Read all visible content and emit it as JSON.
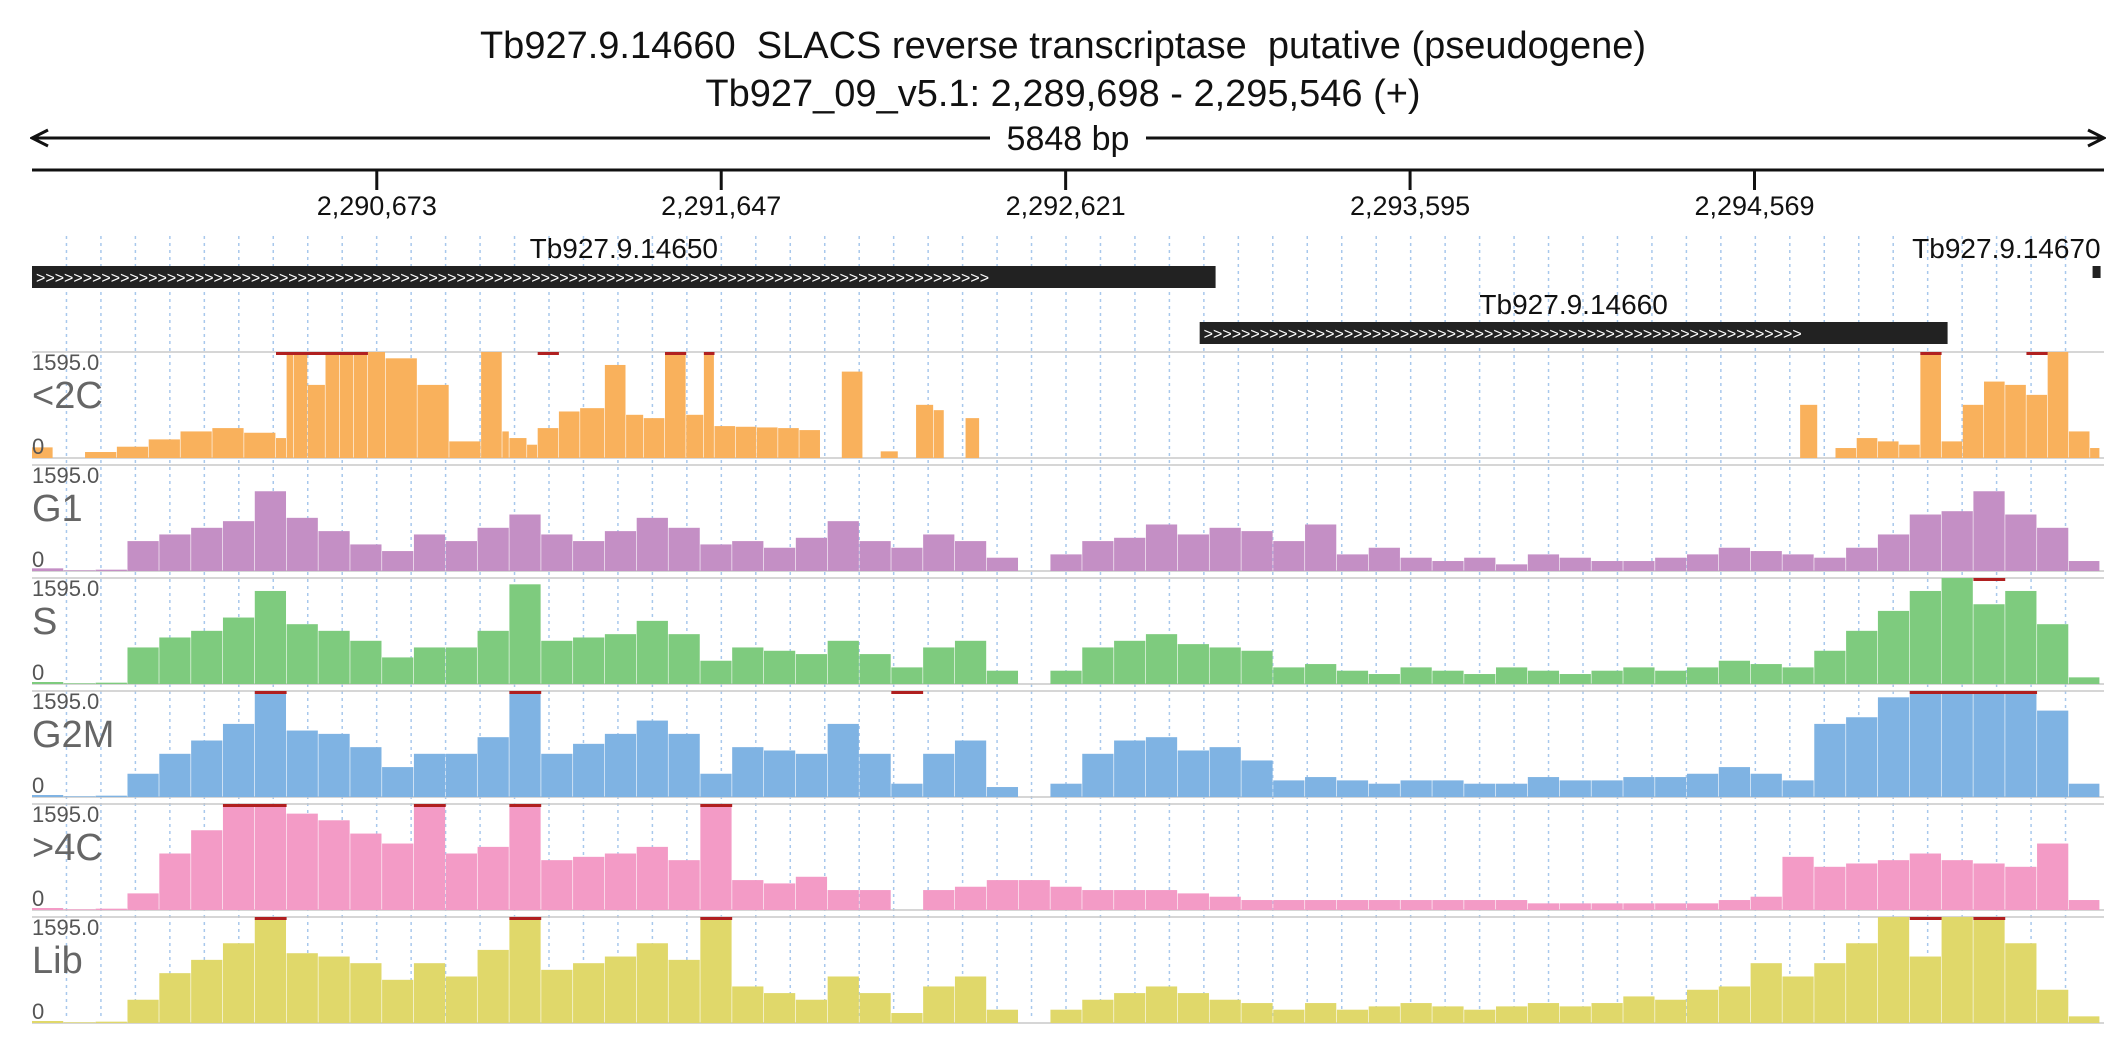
{
  "header": {
    "title": "Tb927.9.14660  SLACS reverse transcriptase  putative (pseudogene)",
    "region": "Tb927_09_v5.1: 2,289,698 - 2,295,546 (+)",
    "span_label": "5848 bp"
  },
  "chart_data": {
    "type": "area",
    "x_range": [
      2289698,
      2295546
    ],
    "x_ticks": [
      2290673,
      2291647,
      2292621,
      2293595,
      2294569
    ],
    "x_tick_labels": [
      "2,290,673",
      "2,291,647",
      "2,292,621",
      "2,293,595",
      "2,294,569"
    ],
    "y_range": [
      0,
      1595.0
    ],
    "y_max_label": "1595.0",
    "y_min_label": "0",
    "grid": "vertical dashed",
    "genes": [
      {
        "name": "Tb927.9.14650",
        "start": 2289698,
        "end": 2293045,
        "strand": "+",
        "label": "Tb927.9.14650"
      },
      {
        "name": "Tb927.9.14660",
        "start": 2293000,
        "end": 2295115,
        "strand": "+",
        "label": "Tb927.9.14660"
      },
      {
        "name": "Tb927.9.14670",
        "start": 2295525,
        "end": 2295546,
        "strand": "+",
        "label": "Tb927.9.14670"
      }
    ],
    "series": [
      {
        "name": "<2C",
        "color": "#f9b15c",
        "x": [
          2289698,
          2289758,
          2289848,
          2289938,
          2290028,
          2290118,
          2290208,
          2290298,
          2290388,
          2290418,
          2290438,
          2290478,
          2290528,
          2290568,
          2290608,
          2290648,
          2290698,
          2290788,
          2290878,
          2290968,
          2291028,
          2291048,
          2291098,
          2291128,
          2291188,
          2291248,
          2291318,
          2291378,
          2291428,
          2291488,
          2291548,
          2291598,
          2291628,
          2291688,
          2291748,
          2291808,
          2291868,
          2291928,
          2291988,
          2292048,
          2292098,
          2292148,
          2292198,
          2292248,
          2292278,
          2292338,
          2292378,
          2292438,
          2292498,
          2292558,
          2292618,
          2292678,
          2292738,
          2292798,
          2292858,
          2292918,
          2292978,
          2293038,
          2293098,
          2293158,
          2293218,
          2293278,
          2293338,
          2293398,
          2293458,
          2293518,
          2293578,
          2293638,
          2293698,
          2293758,
          2293818,
          2293878,
          2293938,
          2293998,
          2294058,
          2294118,
          2294178,
          2294238,
          2294298,
          2294358,
          2294418,
          2294478,
          2294538,
          2294598,
          2294658,
          2294698,
          2294748,
          2294798,
          2294858,
          2294918,
          2294978,
          2295038,
          2295098,
          2295158,
          2295218,
          2295278,
          2295338,
          2295398,
          2295458,
          2295518,
          2295546
        ],
        "y": [
          160,
          0,
          90,
          170,
          280,
          400,
          450,
          380,
          300,
          1595,
          1595,
          1100,
          1595,
          1595,
          1595,
          1595,
          1500,
          1100,
          250,
          1595,
          400,
          300,
          200,
          450,
          700,
          750,
          1400,
          650,
          600,
          1595,
          650,
          1595,
          480,
          470,
          460,
          450,
          420,
          0,
          1300,
          0,
          100,
          0,
          800,
          720,
          0,
          600,
          0,
          0,
          0,
          0,
          0,
          0,
          0,
          0,
          0,
          0,
          0,
          0,
          0,
          0,
          0,
          0,
          0,
          0,
          0,
          0,
          0,
          0,
          0,
          0,
          0,
          0,
          0,
          0,
          0,
          0,
          0,
          0,
          0,
          0,
          0,
          0,
          0,
          0,
          0,
          800,
          0,
          150,
          300,
          250,
          200,
          1595,
          250,
          800,
          1150,
          1100,
          950,
          1595,
          400,
          150,
          450
        ],
        "clipped_regions": [
          [
            2290388,
            2290648
          ],
          [
            2291128,
            2291188
          ],
          [
            2291488,
            2291548
          ],
          [
            2291598,
            2291628
          ],
          [
            2295038,
            2295098
          ],
          [
            2295338,
            2295398
          ]
        ]
      },
      {
        "name": "G1",
        "color": "#c48fc5",
        "x": [
          2289698,
          2289788,
          2289878,
          2289968,
          2290058,
          2290148,
          2290238,
          2290328,
          2290418,
          2290508,
          2290598,
          2290688,
          2290778,
          2290868,
          2290958,
          2291048,
          2291138,
          2291228,
          2291318,
          2291408,
          2291498,
          2291588,
          2291678,
          2291768,
          2291858,
          2291948,
          2292038,
          2292128,
          2292218,
          2292308,
          2292398,
          2292488,
          2292578,
          2292668,
          2292758,
          2292848,
          2292938,
          2293028,
          2293118,
          2293208,
          2293298,
          2293388,
          2293478,
          2293568,
          2293658,
          2293748,
          2293838,
          2293928,
          2294018,
          2294108,
          2294198,
          2294288,
          2294378,
          2294468,
          2294558,
          2294648,
          2294738,
          2294828,
          2294918,
          2295008,
          2295098,
          2295188,
          2295278,
          2295368,
          2295458,
          2295546
        ],
        "y": [
          40,
          10,
          20,
          450,
          550,
          650,
          750,
          1200,
          800,
          600,
          400,
          300,
          550,
          450,
          650,
          850,
          550,
          450,
          600,
          800,
          650,
          400,
          450,
          350,
          500,
          750,
          450,
          350,
          550,
          450,
          200,
          0,
          250,
          450,
          500,
          700,
          550,
          650,
          600,
          450,
          700,
          250,
          350,
          200,
          150,
          200,
          100,
          250,
          200,
          150,
          150,
          200,
          250,
          350,
          300,
          250,
          200,
          350,
          550,
          850,
          900,
          1200,
          850,
          650,
          150,
          200
        ],
        "clipped_regions": []
      },
      {
        "name": "S",
        "color": "#7ecb7e",
        "x": [
          2289698,
          2289788,
          2289878,
          2289968,
          2290058,
          2290148,
          2290238,
          2290328,
          2290418,
          2290508,
          2290598,
          2290688,
          2290778,
          2290868,
          2290958,
          2291048,
          2291138,
          2291228,
          2291318,
          2291408,
          2291498,
          2291588,
          2291678,
          2291768,
          2291858,
          2291948,
          2292038,
          2292128,
          2292218,
          2292308,
          2292398,
          2292488,
          2292578,
          2292668,
          2292758,
          2292848,
          2292938,
          2293028,
          2293118,
          2293208,
          2293298,
          2293388,
          2293478,
          2293568,
          2293658,
          2293748,
          2293838,
          2293928,
          2294018,
          2294108,
          2294198,
          2294288,
          2294378,
          2294468,
          2294558,
          2294648,
          2294738,
          2294828,
          2294918,
          2295008,
          2295098,
          2295188,
          2295278,
          2295368,
          2295458,
          2295546
        ],
        "y": [
          30,
          10,
          20,
          550,
          700,
          800,
          1000,
          1400,
          900,
          800,
          650,
          400,
          550,
          550,
          800,
          1500,
          650,
          700,
          750,
          950,
          750,
          350,
          550,
          500,
          450,
          650,
          450,
          250,
          550,
          650,
          200,
          0,
          200,
          550,
          650,
          750,
          600,
          550,
          500,
          250,
          300,
          200,
          150,
          250,
          200,
          150,
          250,
          200,
          150,
          200,
          250,
          200,
          250,
          350,
          300,
          250,
          500,
          800,
          1100,
          1400,
          1595,
          1200,
          1400,
          900,
          100,
          150
        ],
        "clipped_regions": [
          [
            2295188,
            2295278
          ]
        ]
      },
      {
        "name": "G2M",
        "color": "#7fb3e3",
        "x": [
          2289698,
          2289788,
          2289878,
          2289968,
          2290058,
          2290148,
          2290238,
          2290328,
          2290418,
          2290508,
          2290598,
          2290688,
          2290778,
          2290868,
          2290958,
          2291048,
          2291138,
          2291228,
          2291318,
          2291408,
          2291498,
          2291588,
          2291678,
          2291768,
          2291858,
          2291948,
          2292038,
          2292128,
          2292218,
          2292308,
          2292398,
          2292488,
          2292578,
          2292668,
          2292758,
          2292848,
          2292938,
          2293028,
          2293118,
          2293208,
          2293298,
          2293388,
          2293478,
          2293568,
          2293658,
          2293748,
          2293838,
          2293928,
          2294018,
          2294108,
          2294198,
          2294288,
          2294378,
          2294468,
          2294558,
          2294648,
          2294738,
          2294828,
          2294918,
          2295008,
          2295098,
          2295188,
          2295278,
          2295368,
          2295458,
          2295546
        ],
        "y": [
          30,
          10,
          20,
          350,
          650,
          850,
          1100,
          1595,
          1000,
          950,
          750,
          450,
          650,
          650,
          900,
          1595,
          650,
          800,
          950,
          1150,
          950,
          350,
          750,
          700,
          650,
          1100,
          650,
          200,
          650,
          850,
          150,
          0,
          200,
          650,
          850,
          900,
          700,
          750,
          550,
          250,
          300,
          250,
          200,
          250,
          250,
          200,
          200,
          300,
          250,
          250,
          300,
          300,
          350,
          450,
          350,
          250,
          1100,
          1200,
          1500,
          1595,
          1595,
          1595,
          1595,
          1300,
          200,
          400
        ],
        "clipped_regions": [
          [
            2290328,
            2290418
          ],
          [
            2291048,
            2291138
          ],
          [
            2292128,
            2292218
          ],
          [
            2295008,
            2295368
          ]
        ]
      },
      {
        "name": ">4C",
        "color": "#f39bc6",
        "x": [
          2289698,
          2289788,
          2289878,
          2289968,
          2290058,
          2290148,
          2290238,
          2290328,
          2290418,
          2290508,
          2290598,
          2290688,
          2290778,
          2290868,
          2290958,
          2291048,
          2291138,
          2291228,
          2291318,
          2291408,
          2291498,
          2291588,
          2291678,
          2291768,
          2291858,
          2291948,
          2292038,
          2292128,
          2292218,
          2292308,
          2292398,
          2292488,
          2292578,
          2292668,
          2292758,
          2292848,
          2292938,
          2293028,
          2293118,
          2293208,
          2293298,
          2293388,
          2293478,
          2293568,
          2293658,
          2293748,
          2293838,
          2293928,
          2294018,
          2294108,
          2294198,
          2294288,
          2294378,
          2294468,
          2294558,
          2294648,
          2294738,
          2294828,
          2294918,
          2295008,
          2295098,
          2295188,
          2295278,
          2295368,
          2295458,
          2295546
        ],
        "y": [
          30,
          10,
          20,
          250,
          850,
          1200,
          1595,
          1595,
          1450,
          1350,
          1150,
          1000,
          1595,
          850,
          950,
          1595,
          750,
          800,
          850,
          950,
          750,
          1595,
          450,
          400,
          500,
          300,
          300,
          0,
          300,
          350,
          450,
          450,
          350,
          300,
          300,
          300,
          250,
          200,
          150,
          150,
          150,
          150,
          150,
          150,
          150,
          150,
          150,
          100,
          100,
          100,
          100,
          100,
          100,
          150,
          200,
          800,
          650,
          700,
          750,
          850,
          750,
          700,
          650,
          1000,
          150,
          300
        ],
        "clipped_regions": [
          [
            2290238,
            2290418
          ],
          [
            2290778,
            2290868
          ],
          [
            2291048,
            2291138
          ],
          [
            2291588,
            2291678
          ]
        ]
      },
      {
        "name": "Lib",
        "color": "#e0d86a",
        "x": [
          2289698,
          2289788,
          2289878,
          2289968,
          2290058,
          2290148,
          2290238,
          2290328,
          2290418,
          2290508,
          2290598,
          2290688,
          2290778,
          2290868,
          2290958,
          2291048,
          2291138,
          2291228,
          2291318,
          2291408,
          2291498,
          2291588,
          2291678,
          2291768,
          2291858,
          2291948,
          2292038,
          2292128,
          2292218,
          2292308,
          2292398,
          2292488,
          2292578,
          2292668,
          2292758,
          2292848,
          2292938,
          2293028,
          2293118,
          2293208,
          2293298,
          2293388,
          2293478,
          2293568,
          2293658,
          2293748,
          2293838,
          2293928,
          2294018,
          2294108,
          2294198,
          2294288,
          2294378,
          2294468,
          2294558,
          2294648,
          2294738,
          2294828,
          2294918,
          2295008,
          2295098,
          2295188,
          2295278,
          2295368,
          2295458,
          2295546
        ],
        "y": [
          30,
          10,
          20,
          350,
          750,
          950,
          1200,
          1595,
          1050,
          1000,
          900,
          650,
          900,
          700,
          1100,
          1595,
          800,
          900,
          1000,
          1200,
          950,
          1595,
          550,
          450,
          350,
          700,
          450,
          150,
          550,
          700,
          200,
          0,
          200,
          350,
          450,
          550,
          450,
          350,
          300,
          200,
          300,
          200,
          250,
          300,
          250,
          200,
          250,
          300,
          250,
          300,
          400,
          350,
          500,
          550,
          900,
          700,
          900,
          1200,
          1595,
          1000,
          1595,
          1595,
          1200,
          500,
          100,
          150
        ],
        "clipped_regions": [
          [
            2290328,
            2290418
          ],
          [
            2291048,
            2291138
          ],
          [
            2291588,
            2291678
          ],
          [
            2295008,
            2295098
          ],
          [
            2295188,
            2295278
          ]
        ]
      }
    ]
  }
}
